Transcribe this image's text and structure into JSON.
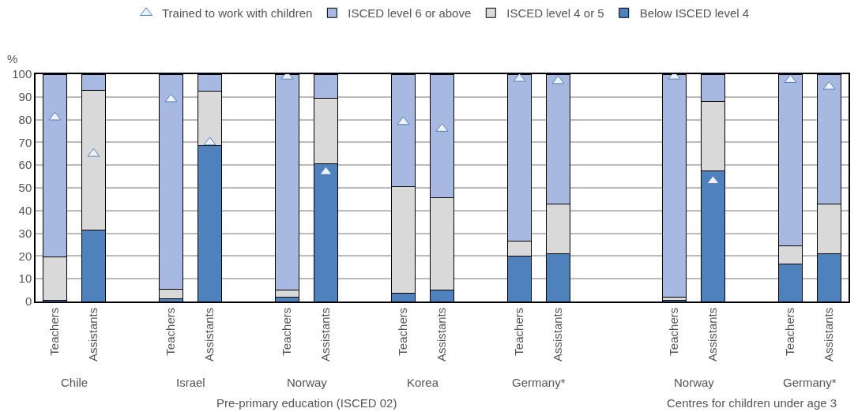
{
  "chart_data": {
    "type": "bar",
    "stacked": true,
    "ylabel": "%",
    "ylim": [
      0,
      100
    ],
    "yticks": [
      0,
      10,
      20,
      30,
      40,
      50,
      60,
      70,
      80,
      90,
      100
    ],
    "grid": "y",
    "legend": "top",
    "categories": [
      "Teachers",
      "Assistants",
      null,
      "Teachers",
      "Assistants",
      null,
      "Teachers",
      "Assistants",
      null,
      "Teachers",
      "Assistants",
      null,
      "Teachers",
      "Assistants",
      null,
      null,
      "Teachers",
      "Assistants",
      null,
      "Teachers",
      "Assistants"
    ],
    "series": [
      {
        "name": "Below ISCED level 4",
        "color": "#4f81bd",
        "values": [
          0.5,
          31.5,
          null,
          1.2,
          68.5,
          null,
          2,
          60.5,
          null,
          3.5,
          5,
          null,
          20,
          21,
          null,
          null,
          0.5,
          57.5,
          null,
          16.5,
          21
        ]
      },
      {
        "name": "ISCED level 4 or 5",
        "color": "#d9d9d9",
        "values": [
          19,
          61.5,
          null,
          4.3,
          24,
          null,
          3,
          29,
          null,
          47,
          40.5,
          null,
          6.5,
          22,
          null,
          null,
          1.5,
          30.5,
          null,
          8,
          22
        ]
      },
      {
        "name": "ISCED level 6 or above",
        "color": "#a7b8e1",
        "values": [
          80.5,
          7,
          null,
          94.5,
          7.5,
          null,
          95,
          10.5,
          null,
          49.5,
          54.5,
          null,
          73.5,
          57,
          null,
          null,
          98,
          12,
          null,
          75.5,
          57
        ]
      },
      {
        "name": "Trained to work with children",
        "type": "scatter",
        "marker": "triangle",
        "color": "#4f81bd",
        "values": [
          81,
          65,
          null,
          89,
          70,
          null,
          99,
          57,
          null,
          79,
          76,
          null,
          98,
          97,
          null,
          null,
          99,
          53,
          null,
          97.5,
          94.5
        ]
      }
    ],
    "annotations": [
      "Chile",
      "Israel",
      "Norway",
      "Korea",
      "Germany*",
      "Norway",
      "Germany*",
      "Pre-primary education (ISCED 02)",
      "Centres for children under age 3"
    ]
  }
}
